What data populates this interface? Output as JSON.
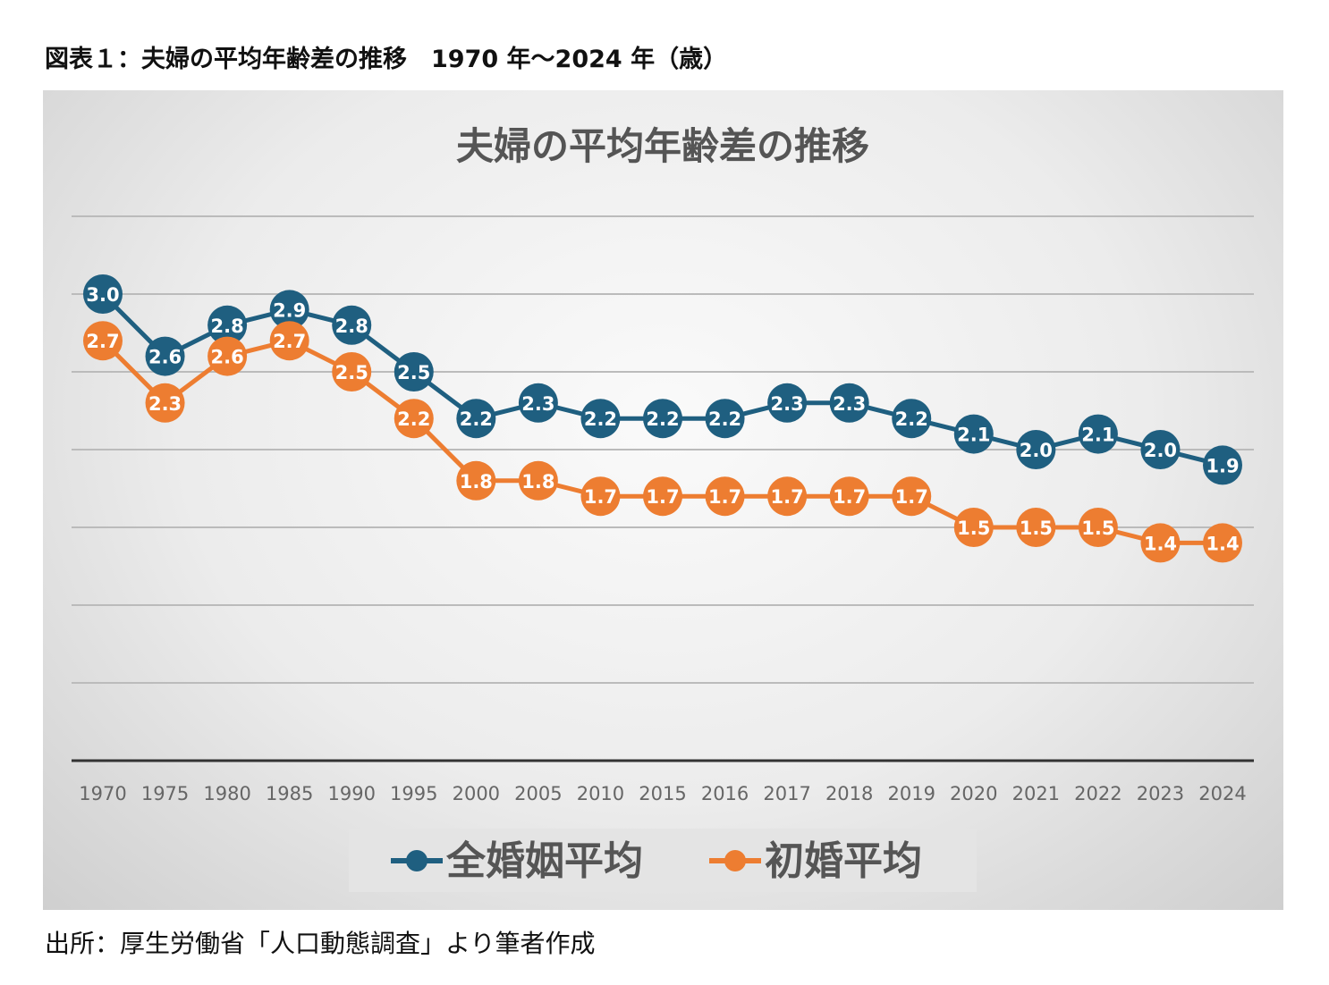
{
  "figure_title": "図表１：夫婦の平均年齢差の推移　1970 年～2024 年（歳）",
  "source": "出所：厚生労働省「人口動態調査」より筆者作成",
  "chart_data": {
    "type": "line",
    "title": "夫婦の平均年齢差の推移",
    "xlabel": "",
    "ylabel": "",
    "ylim": [
      0,
      3.5
    ],
    "grid": true,
    "legend_position": "bottom",
    "categories": [
      "1970",
      "1975",
      "1980",
      "1985",
      "1990",
      "1995",
      "2000",
      "2005",
      "2010",
      "2015",
      "2016",
      "2017",
      "2018",
      "2019",
      "2020",
      "2021",
      "2022",
      "2023",
      "2024"
    ],
    "series": [
      {
        "name": "全婚姻平均",
        "color": "#1f5f80",
        "values": [
          3.0,
          2.6,
          2.8,
          2.9,
          2.8,
          2.5,
          2.2,
          2.3,
          2.2,
          2.2,
          2.2,
          2.3,
          2.3,
          2.2,
          2.1,
          2.0,
          2.1,
          2.0,
          1.9
        ]
      },
      {
        "name": "初婚平均",
        "color": "#ed7d31",
        "values": [
          2.7,
          2.3,
          2.6,
          2.7,
          2.5,
          2.2,
          1.8,
          1.8,
          1.7,
          1.7,
          1.7,
          1.7,
          1.7,
          1.7,
          1.5,
          1.5,
          1.5,
          1.4,
          1.4
        ]
      }
    ]
  }
}
